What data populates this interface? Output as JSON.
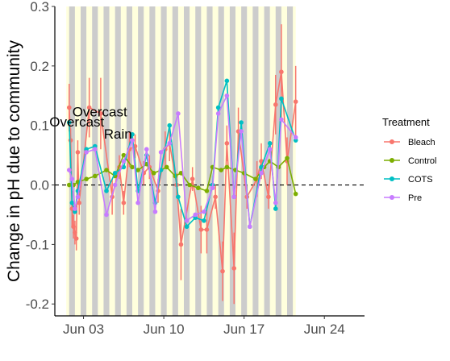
{
  "chart_data": {
    "type": "line",
    "title": "",
    "xlabel": "",
    "ylabel": "Change in pH due to community",
    "x_ticks": [
      {
        "date": "2023-06-03",
        "label": "Jun 03"
      },
      {
        "date": "2023-06-10",
        "label": "Jun 10"
      },
      {
        "date": "2023-06-17",
        "label": "Jun 17"
      },
      {
        "date": "2023-06-24",
        "label": "Jun 24"
      }
    ],
    "y_ticks": [
      -0.2,
      -0.1,
      0.0,
      0.1,
      0.2,
      0.3
    ],
    "y_tick_labels": [
      "-0.2",
      "-0.1",
      "0.0",
      "0.1",
      "0.2",
      "0.3"
    ],
    "ylim": [
      -0.22,
      0.3
    ],
    "xlim": [
      "2023-05-31T12:00",
      "2023-06-27T12:00"
    ],
    "reference_line": {
      "y": 0,
      "style": "dashed"
    },
    "legend": {
      "title": "Treatment",
      "position": "right"
    },
    "background_shading": {
      "light_color": "#ffffdd",
      "dark_color": "#cccccc",
      "light_span": [
        "2023-06-01T12:00",
        "2023-06-21T12:00"
      ],
      "night_bands": [
        [
          "2023-06-01T18:00",
          "2023-06-02T06:00"
        ],
        [
          "2023-06-02T18:00",
          "2023-06-03T06:00"
        ],
        [
          "2023-06-03T18:00",
          "2023-06-04T06:00"
        ],
        [
          "2023-06-04T18:00",
          "2023-06-05T06:00"
        ],
        [
          "2023-06-05T18:00",
          "2023-06-06T06:00"
        ],
        [
          "2023-06-06T18:00",
          "2023-06-07T06:00"
        ],
        [
          "2023-06-07T18:00",
          "2023-06-08T06:00"
        ],
        [
          "2023-06-08T18:00",
          "2023-06-09T06:00"
        ],
        [
          "2023-06-09T18:00",
          "2023-06-10T06:00"
        ],
        [
          "2023-06-10T18:00",
          "2023-06-11T06:00"
        ],
        [
          "2023-06-11T18:00",
          "2023-06-12T06:00"
        ],
        [
          "2023-06-12T18:00",
          "2023-06-13T06:00"
        ],
        [
          "2023-06-13T18:00",
          "2023-06-14T06:00"
        ],
        [
          "2023-06-14T18:00",
          "2023-06-15T06:00"
        ],
        [
          "2023-06-15T18:00",
          "2023-06-16T06:00"
        ],
        [
          "2023-06-16T18:00",
          "2023-06-17T06:00"
        ],
        [
          "2023-06-17T18:00",
          "2023-06-18T06:00"
        ],
        [
          "2023-06-18T18:00",
          "2023-06-19T06:00"
        ],
        [
          "2023-06-19T18:00",
          "2023-06-20T06:00"
        ],
        [
          "2023-06-20T18:00",
          "2023-06-21T06:00"
        ]
      ]
    },
    "annotations": [
      {
        "text": "Overcast",
        "date": "2023-06-04T10:00",
        "y": 0.115
      },
      {
        "text": "Overcast",
        "date": "2023-06-02T10:00",
        "y": 0.098
      },
      {
        "text": "Rain",
        "date": "2023-06-06T00:00",
        "y": 0.078
      }
    ],
    "series": [
      {
        "name": "Bleach",
        "color": "#F8766D",
        "x": [
          "2023-06-01T18:00",
          "2023-06-01T21:00",
          "2023-06-02T00:00",
          "2023-06-02T03:00",
          "2023-06-02T06:00",
          "2023-06-02T09:00",
          "2023-06-02T12:00",
          "2023-06-02T15:00",
          "2023-06-03T12:00",
          "2023-06-04T12:00",
          "2023-06-05T12:00",
          "2023-06-06T03:00",
          "2023-06-06T12:00",
          "2023-06-07T00:00",
          "2023-06-07T12:00",
          "2023-06-08T06:00",
          "2023-06-08T18:00",
          "2023-06-09T12:00",
          "2023-06-10T03:00",
          "2023-06-10T12:00",
          "2023-06-11T03:00",
          "2023-06-11T12:00",
          "2023-06-12T12:00",
          "2023-06-13T06:00",
          "2023-06-13T18:00",
          "2023-06-14T12:00",
          "2023-06-15T03:00",
          "2023-06-15T12:00",
          "2023-06-16T03:00",
          "2023-06-16T12:00",
          "2023-06-17T06:00",
          "2023-06-18T03:00",
          "2023-06-18T12:00",
          "2023-06-19T03:00",
          "2023-06-19T18:00",
          "2023-06-20T06:00",
          "2023-06-20T18:00",
          "2023-06-21T12:00"
        ],
        "y": [
          0.13,
          0.075,
          -0.04,
          -0.07,
          -0.08,
          -0.09,
          0.055,
          -0.03,
          0.13,
          0.12,
          -0.02,
          0.03,
          -0.03,
          0.06,
          0.065,
          0.02,
          0.03,
          -0.01,
          0.06,
          0.07,
          0.0,
          -0.1,
          0.01,
          -0.075,
          -0.075,
          -0.02,
          -0.145,
          0.07,
          -0.14,
          0.09,
          -0.02,
          0.01,
          0.04,
          -0.02,
          0.135,
          0.19,
          0.04,
          0.14
        ],
        "err": [
          0.04,
          0.02,
          0.03,
          0.02,
          0.02,
          0.02,
          0.02,
          0.02,
          0.05,
          0.06,
          0.03,
          0.02,
          0.02,
          0.03,
          0.02,
          0.02,
          0.02,
          0.02,
          0.03,
          0.03,
          0.02,
          0.06,
          0.02,
          0.04,
          0.04,
          0.02,
          0.05,
          0.03,
          0.06,
          0.04,
          0.02,
          0.03,
          0.03,
          0.02,
          0.05,
          0.08,
          0.04,
          0.06
        ]
      },
      {
        "name": "Control",
        "color": "#7CAE00",
        "x": [
          "2023-06-01T18:00",
          "2023-06-02T03:00",
          "2023-06-02T12:00",
          "2023-06-03T06:00",
          "2023-06-04T00:00",
          "2023-06-05T00:00",
          "2023-06-05T18:00",
          "2023-06-06T12:00",
          "2023-06-07T06:00",
          "2023-06-07T18:00",
          "2023-06-08T12:00",
          "2023-06-09T03:00",
          "2023-06-09T18:00",
          "2023-06-10T06:00",
          "2023-06-11T00:00",
          "2023-06-11T12:00",
          "2023-06-12T06:00",
          "2023-06-13T00:00",
          "2023-06-13T18:00",
          "2023-06-14T06:00",
          "2023-06-15T00:00",
          "2023-06-15T12:00",
          "2023-06-16T06:00",
          "2023-06-17T00:00",
          "2023-06-18T00:00",
          "2023-06-18T18:00",
          "2023-06-19T06:00",
          "2023-06-20T00:00",
          "2023-06-20T18:00",
          "2023-06-21T12:00"
        ],
        "y": [
          0.0,
          0.0,
          0.005,
          0.01,
          0.015,
          0.025,
          0.015,
          0.05,
          0.03,
          0.025,
          0.035,
          0.02,
          0.025,
          0.03,
          0.015,
          0.02,
          0.0,
          -0.005,
          -0.01,
          0.03,
          0.025,
          0.03,
          0.025,
          0.02,
          0.01,
          0.03,
          0.04,
          0.03,
          0.045,
          -0.015
        ]
      },
      {
        "name": "COTS",
        "color": "#00BFC4",
        "x": [
          "2023-06-01T18:00",
          "2023-06-02T00:00",
          "2023-06-02T06:00",
          "2023-06-02T12:00",
          "2023-06-03T06:00",
          "2023-06-04T00:00",
          "2023-06-05T00:00",
          "2023-06-05T18:00",
          "2023-06-06T12:00",
          "2023-06-07T06:00",
          "2023-06-07T18:00",
          "2023-06-08T12:00",
          "2023-06-09T06:00",
          "2023-06-09T18:00",
          "2023-06-10T12:00",
          "2023-06-11T06:00",
          "2023-06-12T00:00",
          "2023-06-12T18:00",
          "2023-06-13T12:00",
          "2023-06-14T06:00",
          "2023-06-14T18:00",
          "2023-06-15T12:00",
          "2023-06-16T03:00",
          "2023-06-16T18:00",
          "2023-06-17T12:00",
          "2023-06-18T12:00",
          "2023-06-19T06:00",
          "2023-06-19T18:00",
          "2023-06-20T06:00",
          "2023-06-21T12:00"
        ],
        "y": [
          0.105,
          -0.03,
          -0.045,
          -0.01,
          0.06,
          0.065,
          -0.01,
          0.02,
          0.03,
          0.085,
          -0.01,
          0.05,
          -0.03,
          0.025,
          0.1,
          -0.02,
          -0.07,
          -0.055,
          -0.06,
          0.0,
          0.13,
          0.175,
          -0.02,
          0.105,
          -0.07,
          0.03,
          0.07,
          -0.04,
          0.145,
          0.075
        ]
      },
      {
        "name": "Pre",
        "color": "#C77CFF",
        "x": [
          "2023-06-01T18:00",
          "2023-06-02T00:00",
          "2023-06-02T06:00",
          "2023-06-02T12:00",
          "2023-06-03T06:00",
          "2023-06-04T00:00",
          "2023-06-05T00:00",
          "2023-06-05T18:00",
          "2023-06-06T12:00",
          "2023-06-07T06:00",
          "2023-06-07T18:00",
          "2023-06-08T12:00",
          "2023-06-09T06:00",
          "2023-06-09T18:00",
          "2023-06-10T12:00",
          "2023-06-11T06:00",
          "2023-06-12T00:00",
          "2023-06-12T18:00",
          "2023-06-13T12:00",
          "2023-06-14T06:00",
          "2023-06-14T18:00",
          "2023-06-15T12:00",
          "2023-06-16T03:00",
          "2023-06-16T18:00",
          "2023-06-17T12:00",
          "2023-06-18T12:00",
          "2023-06-19T06:00",
          "2023-06-19T18:00",
          "2023-06-20T06:00",
          "2023-06-21T12:00"
        ],
        "y": [
          0.025,
          0.01,
          -0.04,
          -0.02,
          0.055,
          0.06,
          -0.05,
          0.0,
          0.04,
          0.075,
          -0.03,
          0.06,
          -0.045,
          0.055,
          0.07,
          0.12,
          -0.06,
          -0.05,
          -0.045,
          -0.005,
          0.12,
          0.15,
          -0.02,
          0.09,
          -0.07,
          0.02,
          0.06,
          -0.03,
          0.11,
          0.08
        ]
      }
    ]
  }
}
